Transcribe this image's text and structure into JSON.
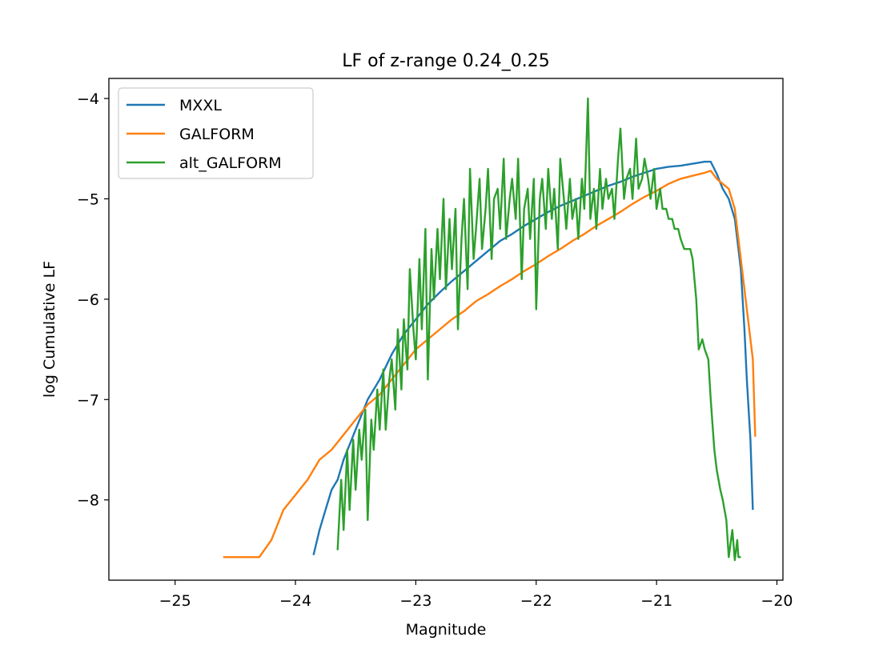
{
  "chart_data": {
    "type": "line",
    "title": "LF of z-range 0.24_0.25",
    "xlabel": "Magnitude",
    "ylabel": "log Cumulative LF",
    "xlim": [
      -25.55,
      -19.95
    ],
    "ylim": [
      -8.8,
      -3.8
    ],
    "xticks": [
      -25,
      -24,
      -23,
      -22,
      -21,
      -20
    ],
    "yticks": [
      -8,
      -7,
      -6,
      -5,
      -4
    ],
    "grid": false,
    "legend_position": "top-left",
    "series": [
      {
        "name": "MXXL",
        "color": "#1f77b4",
        "x": [
          -23.85,
          -23.8,
          -23.75,
          -23.7,
          -23.65,
          -23.6,
          -23.55,
          -23.5,
          -23.45,
          -23.4,
          -23.35,
          -23.3,
          -23.2,
          -23.1,
          -23.0,
          -22.9,
          -22.8,
          -22.7,
          -22.6,
          -22.5,
          -22.4,
          -22.3,
          -22.2,
          -22.1,
          -22.0,
          -21.9,
          -21.8,
          -21.7,
          -21.6,
          -21.5,
          -21.4,
          -21.3,
          -21.2,
          -21.1,
          -21.0,
          -20.9,
          -20.8,
          -20.7,
          -20.6,
          -20.55,
          -20.5,
          -20.45,
          -20.4,
          -20.35,
          -20.3,
          -20.27,
          -20.25,
          -20.22,
          -20.2
        ],
        "y": [
          -8.55,
          -8.3,
          -8.1,
          -7.9,
          -7.8,
          -7.6,
          -7.45,
          -7.3,
          -7.15,
          -7.0,
          -6.9,
          -6.8,
          -6.55,
          -6.35,
          -6.2,
          -6.05,
          -5.93,
          -5.82,
          -5.72,
          -5.62,
          -5.52,
          -5.42,
          -5.35,
          -5.27,
          -5.2,
          -5.13,
          -5.07,
          -5.02,
          -4.97,
          -4.92,
          -4.87,
          -4.83,
          -4.78,
          -4.74,
          -4.7,
          -4.68,
          -4.67,
          -4.65,
          -4.63,
          -4.63,
          -4.75,
          -4.9,
          -5.0,
          -5.2,
          -5.7,
          -6.3,
          -6.8,
          -7.4,
          -8.1
        ]
      },
      {
        "name": "GALFORM",
        "color": "#ff7f0e",
        "x": [
          -24.6,
          -24.55,
          -24.3,
          -24.2,
          -24.1,
          -24.0,
          -23.9,
          -23.8,
          -23.7,
          -23.6,
          -23.5,
          -23.4,
          -23.3,
          -23.2,
          -23.1,
          -23.0,
          -22.9,
          -22.8,
          -22.7,
          -22.6,
          -22.5,
          -22.4,
          -22.3,
          -22.2,
          -22.1,
          -22.0,
          -21.9,
          -21.8,
          -21.7,
          -21.6,
          -21.5,
          -21.4,
          -21.3,
          -21.2,
          -21.1,
          -21.0,
          -20.9,
          -20.8,
          -20.7,
          -20.6,
          -20.55,
          -20.5,
          -20.45,
          -20.4,
          -20.35,
          -20.3,
          -20.25,
          -20.2,
          -20.18
        ],
        "y": [
          -8.57,
          -8.57,
          -8.57,
          -8.4,
          -8.1,
          -7.95,
          -7.8,
          -7.6,
          -7.5,
          -7.35,
          -7.2,
          -7.05,
          -6.95,
          -6.8,
          -6.65,
          -6.5,
          -6.4,
          -6.3,
          -6.2,
          -6.12,
          -6.02,
          -5.95,
          -5.87,
          -5.8,
          -5.72,
          -5.65,
          -5.57,
          -5.5,
          -5.42,
          -5.35,
          -5.27,
          -5.2,
          -5.13,
          -5.05,
          -4.98,
          -4.92,
          -4.85,
          -4.8,
          -4.77,
          -4.74,
          -4.72,
          -4.8,
          -4.85,
          -4.9,
          -5.1,
          -5.6,
          -6.1,
          -6.6,
          -7.37
        ]
      },
      {
        "name": "alt_GALFORM",
        "color": "#2ca02c",
        "x": [
          -23.65,
          -23.62,
          -23.6,
          -23.57,
          -23.55,
          -23.52,
          -23.5,
          -23.47,
          -23.45,
          -23.42,
          -23.4,
          -23.37,
          -23.35,
          -23.32,
          -23.3,
          -23.27,
          -23.25,
          -23.22,
          -23.2,
          -23.17,
          -23.15,
          -23.12,
          -23.1,
          -23.07,
          -23.05,
          -23.02,
          -23.0,
          -22.97,
          -22.95,
          -22.92,
          -22.9,
          -22.87,
          -22.85,
          -22.82,
          -22.8,
          -22.77,
          -22.75,
          -22.72,
          -22.7,
          -22.67,
          -22.65,
          -22.62,
          -22.6,
          -22.57,
          -22.55,
          -22.52,
          -22.5,
          -22.47,
          -22.45,
          -22.42,
          -22.4,
          -22.37,
          -22.35,
          -22.32,
          -22.3,
          -22.27,
          -22.25,
          -22.22,
          -22.2,
          -22.17,
          -22.15,
          -22.12,
          -22.1,
          -22.07,
          -22.05,
          -22.02,
          -22.0,
          -21.97,
          -21.95,
          -21.92,
          -21.9,
          -21.87,
          -21.85,
          -21.82,
          -21.8,
          -21.77,
          -21.75,
          -21.72,
          -21.7,
          -21.67,
          -21.65,
          -21.62,
          -21.6,
          -21.57,
          -21.55,
          -21.52,
          -21.5,
          -21.47,
          -21.45,
          -21.42,
          -21.4,
          -21.37,
          -21.35,
          -21.32,
          -21.3,
          -21.27,
          -21.25,
          -21.22,
          -21.2,
          -21.17,
          -21.15,
          -21.12,
          -21.1,
          -21.07,
          -21.05,
          -21.02,
          -21.0,
          -20.97,
          -20.95,
          -20.92,
          -20.9,
          -20.87,
          -20.85,
          -20.82,
          -20.8,
          -20.77,
          -20.75,
          -20.72,
          -20.7,
          -20.67,
          -20.65,
          -20.62,
          -20.6,
          -20.57,
          -20.55,
          -20.52,
          -20.5,
          -20.47,
          -20.45,
          -20.42,
          -20.4,
          -20.37,
          -20.35,
          -20.33,
          -20.32,
          -20.31,
          -20.3
        ],
        "y": [
          -8.5,
          -7.8,
          -8.3,
          -7.5,
          -8.1,
          -7.4,
          -7.9,
          -7.3,
          -7.6,
          -7.1,
          -8.2,
          -7.2,
          -7.5,
          -6.9,
          -7.3,
          -6.7,
          -7.3,
          -6.8,
          -6.6,
          -7.1,
          -6.3,
          -6.9,
          -6.2,
          -6.7,
          -5.7,
          -6.3,
          -6.6,
          -5.6,
          -6.3,
          -5.3,
          -6.8,
          -5.5,
          -6.0,
          -5.3,
          -5.8,
          -5.0,
          -5.9,
          -5.2,
          -5.7,
          -5.1,
          -6.3,
          -5.4,
          -5.0,
          -5.9,
          -4.7,
          -5.6,
          -5.3,
          -4.8,
          -5.5,
          -5.1,
          -4.7,
          -5.6,
          -5.0,
          -4.9,
          -5.3,
          -4.6,
          -5.4,
          -5.0,
          -4.8,
          -5.2,
          -4.6,
          -5.8,
          -5.1,
          -4.9,
          -5.4,
          -4.8,
          -6.1,
          -5.0,
          -4.8,
          -5.3,
          -4.7,
          -5.2,
          -4.9,
          -5.5,
          -4.6,
          -5.0,
          -5.3,
          -4.8,
          -5.2,
          -5.0,
          -5.4,
          -4.8,
          -5.1,
          -4.0,
          -5.2,
          -4.9,
          -5.3,
          -4.7,
          -5.1,
          -4.8,
          -5.0,
          -4.9,
          -5.2,
          -4.6,
          -4.3,
          -5.0,
          -4.8,
          -4.7,
          -5.0,
          -4.4,
          -4.9,
          -4.8,
          -4.6,
          -4.8,
          -5.0,
          -4.7,
          -5.1,
          -4.9,
          -5.1,
          -5.1,
          -5.2,
          -5.2,
          -5.3,
          -5.3,
          -5.4,
          -5.5,
          -5.5,
          -5.5,
          -5.6,
          -6.0,
          -6.5,
          -6.4,
          -6.5,
          -6.6,
          -7.0,
          -7.5,
          -7.7,
          -7.9,
          -8.0,
          -8.2,
          -8.57,
          -8.3,
          -8.6,
          -8.4,
          -8.57,
          -8.57,
          -8.57
        ]
      }
    ]
  }
}
